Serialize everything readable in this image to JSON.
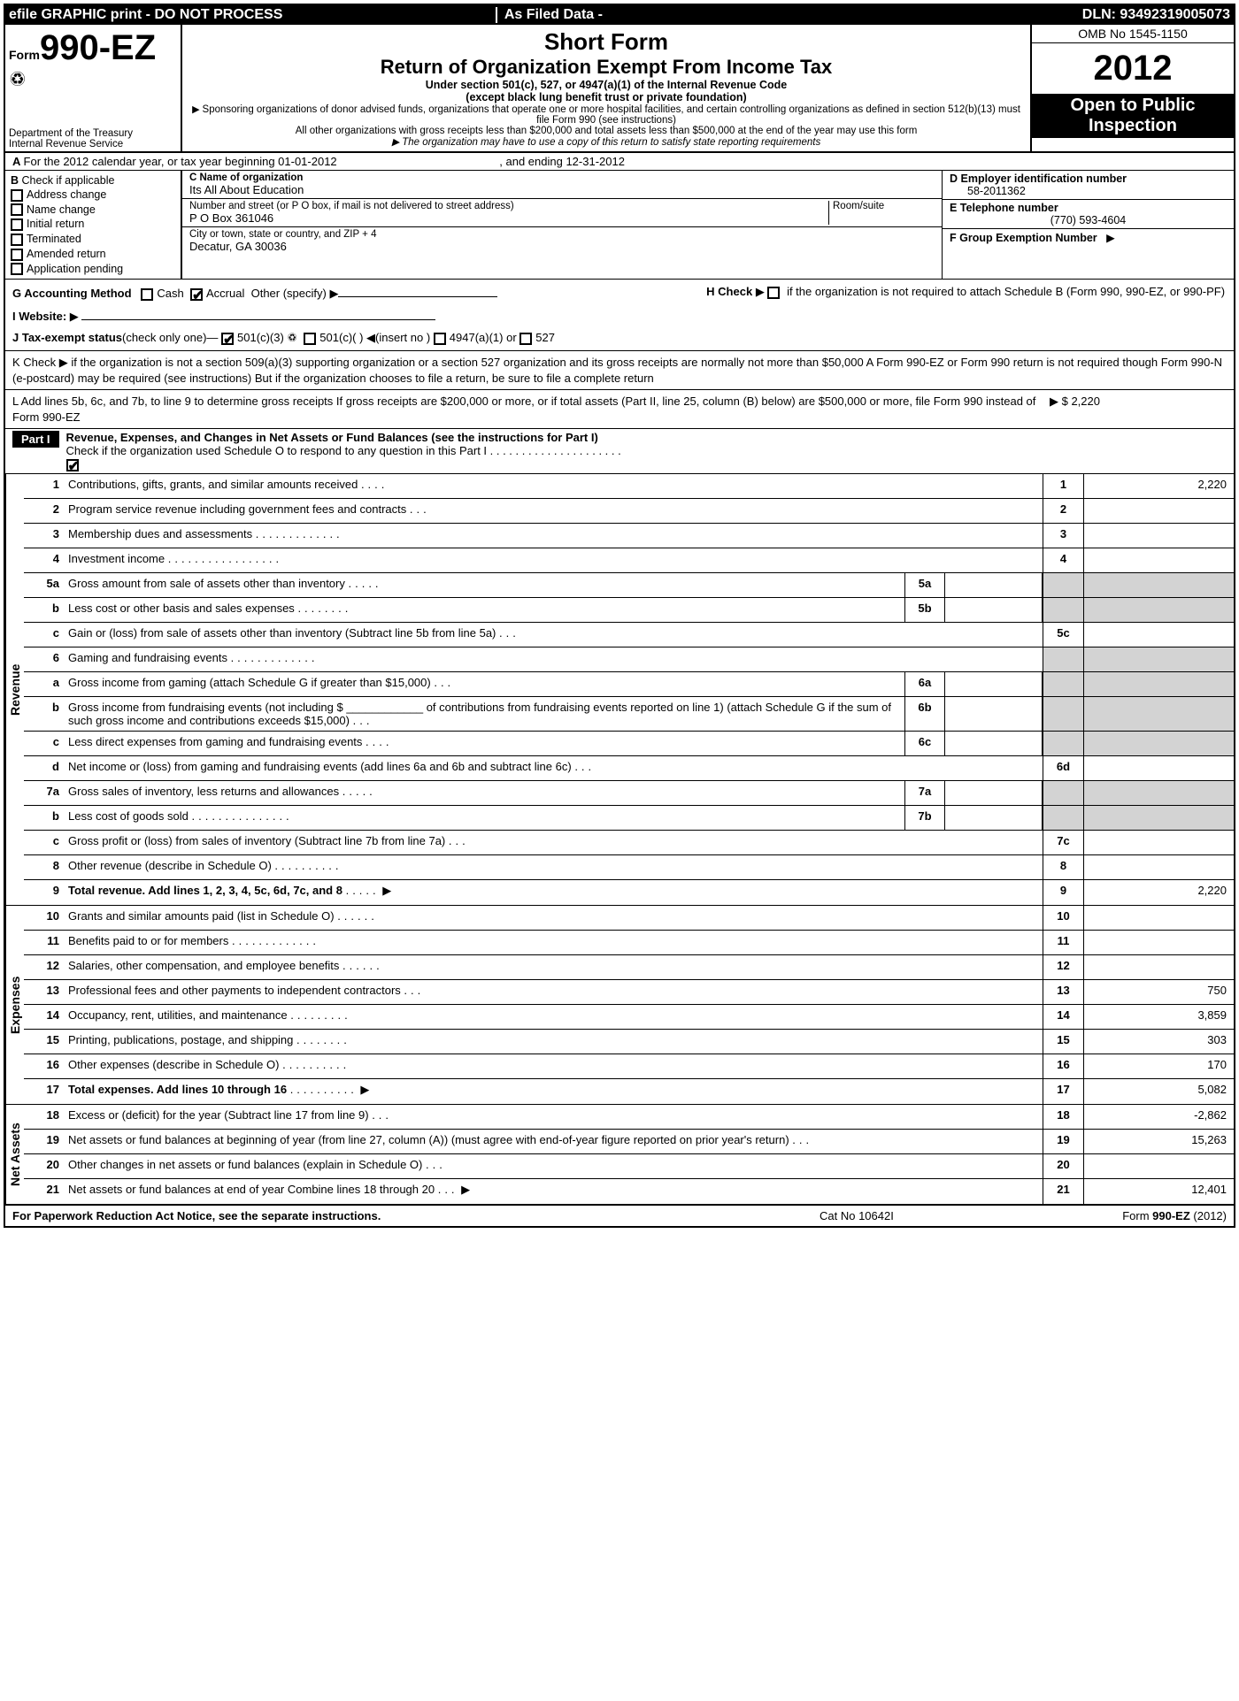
{
  "topbar": {
    "efile": "efile GRAPHIC print - DO NOT PROCESS",
    "asfiled": "As Filed Data -",
    "dln": "DLN: 93492319005073"
  },
  "header": {
    "form_prefix": "Form",
    "form_no": "990-EZ",
    "dept": "Department of the Treasury",
    "irs": "Internal Revenue Service",
    "short_form": "Short Form",
    "title": "Return of Organization Exempt From Income Tax",
    "sub1": "Under section 501(c), 527, or 4947(a)(1) of the Internal Revenue Code",
    "sub2": "(except black lung benefit trust or private foundation)",
    "sub3": "Sponsoring organizations of donor advised funds, organizations that operate one or more hospital facilities, and certain controlling organizations as defined in section 512(b)(13) must file Form 990 (see instructions)",
    "sub4": "All other organizations with gross receipts less than $200,000 and total assets less than $500,000 at the end of the year may use this form",
    "sub5": "The organization may have to use a copy of this return to satisfy state reporting requirements",
    "omb": "OMB No 1545-1150",
    "year": "2012",
    "open": "Open to Public Inspection"
  },
  "A": {
    "text": "For the 2012 calendar year, or tax year beginning 01-01-2012",
    "ending": ", and ending 12-31-2012"
  },
  "B": {
    "label": "Check if applicable",
    "items": [
      "Address change",
      "Name change",
      "Initial return",
      "Terminated",
      "Amended return",
      "Application pending"
    ]
  },
  "C": {
    "name_lbl": "C Name of organization",
    "name": "Its All About Education",
    "street_lbl": "Number and street (or P O box, if mail is not delivered to street address)",
    "room_lbl": "Room/suite",
    "street": "P O Box 361046",
    "city_lbl": "City or town, state or country, and ZIP + 4",
    "city": "Decatur, GA  30036"
  },
  "D": {
    "lbl": "D Employer identification number",
    "val": "58-2011362"
  },
  "E": {
    "lbl": "E Telephone number",
    "val": "(770) 593-4604"
  },
  "F": {
    "lbl": "F Group Exemption Number"
  },
  "G": {
    "lbl": "G Accounting Method",
    "cash": "Cash",
    "accrual": "Accrual",
    "other": "Other (specify)"
  },
  "H": {
    "lbl": "H  Check",
    "text": "if the organization is not required to attach Schedule B (Form 990, 990-EZ, or 990-PF)"
  },
  "I": {
    "lbl": "I Website:"
  },
  "J": {
    "lbl": "J Tax-exempt status",
    "note": "(check only one)—",
    "a": "501(c)(3)",
    "b": "501(c)(  ) ◀(insert no )",
    "c": "4947(a)(1) or",
    "d": "527"
  },
  "K": {
    "text": "K Check ▶   if the organization is not a section 509(a)(3) supporting organization or a section 527 organization and its gross receipts are normally not more than $50,000  A Form 990-EZ or Form 990 return is not required though Form 990-N (e-postcard) may be required (see instructions)  But if the organization chooses to file a return, be sure to file a complete return"
  },
  "L": {
    "text": "L Add lines 5b, 6c, and 7b, to line 9 to determine gross receipts  If gross receipts are $200,000 or more, or if total assets (Part II, line 25, column (B) below) are $500,000 or more, file Form 990 instead of Form 990-EZ",
    "val": "$ 2,220"
  },
  "part1": {
    "tag": "Part I",
    "title": "Revenue, Expenses, and Changes in Net Assets or Fund Balances (see the instructions for Part I)",
    "check": "Check if the organization used Schedule O to respond to any question in this Part I . . . . . . . . . . . . . . . . . . . . ."
  },
  "sections": {
    "revenue": "Revenue",
    "expenses": "Expenses",
    "netassets": "Net Assets"
  },
  "lines": {
    "l1": {
      "n": "1",
      "d": "Contributions, gifts, grants, and similar amounts received",
      "r": "1",
      "v": "2,220"
    },
    "l2": {
      "n": "2",
      "d": "Program service revenue including government fees and contracts",
      "r": "2",
      "v": ""
    },
    "l3": {
      "n": "3",
      "d": "Membership dues and assessments",
      "r": "3",
      "v": ""
    },
    "l4": {
      "n": "4",
      "d": "Investment income",
      "r": "4",
      "v": ""
    },
    "l5a": {
      "n": "5a",
      "d": "Gross amount from sale of assets other than inventory",
      "s": "5a"
    },
    "l5b": {
      "n": "b",
      "d": "Less  cost or other basis and sales expenses",
      "s": "5b"
    },
    "l5c": {
      "n": "c",
      "d": "Gain or (loss) from sale of assets other than inventory (Subtract line 5b from line 5a)",
      "r": "5c",
      "v": ""
    },
    "l6": {
      "n": "6",
      "d": "Gaming and fundraising events"
    },
    "l6a": {
      "n": "a",
      "d": "Gross income from gaming (attach Schedule G if greater than $15,000)",
      "s": "6a"
    },
    "l6b": {
      "n": "b",
      "d": "Gross income from fundraising events (not including $ ____________ of contributions from fundraising events reported on line 1) (attach Schedule G if the sum of such gross income and contributions exceeds $15,000)",
      "s": "6b"
    },
    "l6c": {
      "n": "c",
      "d": "Less  direct expenses from gaming and fundraising events",
      "s": "6c"
    },
    "l6d": {
      "n": "d",
      "d": "Net income or (loss) from gaming and fundraising events (add lines 6a and 6b and subtract line 6c)",
      "r": "6d",
      "v": ""
    },
    "l7a": {
      "n": "7a",
      "d": "Gross sales of inventory, less returns and allowances",
      "s": "7a"
    },
    "l7b": {
      "n": "b",
      "d": "Less  cost of goods sold",
      "s": "7b"
    },
    "l7c": {
      "n": "c",
      "d": "Gross profit or (loss) from sales of inventory (Subtract line 7b from line 7a)",
      "r": "7c",
      "v": ""
    },
    "l8": {
      "n": "8",
      "d": "Other revenue (describe in Schedule O)",
      "r": "8",
      "v": ""
    },
    "l9": {
      "n": "9",
      "d": "Total revenue. Add lines 1, 2, 3, 4, 5c, 6d, 7c, and 8",
      "r": "9",
      "v": "2,220",
      "bold": true,
      "ar": true
    },
    "l10": {
      "n": "10",
      "d": "Grants and similar amounts paid (list in Schedule O)",
      "r": "10",
      "v": ""
    },
    "l11": {
      "n": "11",
      "d": "Benefits paid to or for members",
      "r": "11",
      "v": ""
    },
    "l12": {
      "n": "12",
      "d": "Salaries, other compensation, and employee benefits",
      "r": "12",
      "v": ""
    },
    "l13": {
      "n": "13",
      "d": "Professional fees and other payments to independent contractors",
      "r": "13",
      "v": "750"
    },
    "l14": {
      "n": "14",
      "d": "Occupancy, rent, utilities, and maintenance",
      "r": "14",
      "v": "3,859"
    },
    "l15": {
      "n": "15",
      "d": "Printing, publications, postage, and shipping",
      "r": "15",
      "v": "303"
    },
    "l16": {
      "n": "16",
      "d": "Other expenses (describe in Schedule O)",
      "r": "16",
      "v": "170"
    },
    "l17": {
      "n": "17",
      "d": "Total expenses. Add lines 10 through 16",
      "r": "17",
      "v": "5,082",
      "bold": true,
      "ar": true
    },
    "l18": {
      "n": "18",
      "d": "Excess or (deficit) for the year (Subtract line 17 from line 9)",
      "r": "18",
      "v": "-2,862"
    },
    "l19": {
      "n": "19",
      "d": "Net assets or fund balances at beginning of year (from line 27, column (A)) (must agree with end-of-year figure reported on prior year's return)",
      "r": "19",
      "v": "15,263"
    },
    "l20": {
      "n": "20",
      "d": "Other changes in net assets or fund balances (explain in Schedule O)",
      "r": "20",
      "v": ""
    },
    "l21": {
      "n": "21",
      "d": "Net assets or fund balances at end of year  Combine lines 18 through 20",
      "r": "21",
      "v": "12,401",
      "ar": true
    }
  },
  "footer": {
    "pra": "For Paperwork Reduction Act Notice, see the separate instructions.",
    "cat": "Cat No 10642I",
    "form": "Form 990-EZ (2012)"
  }
}
